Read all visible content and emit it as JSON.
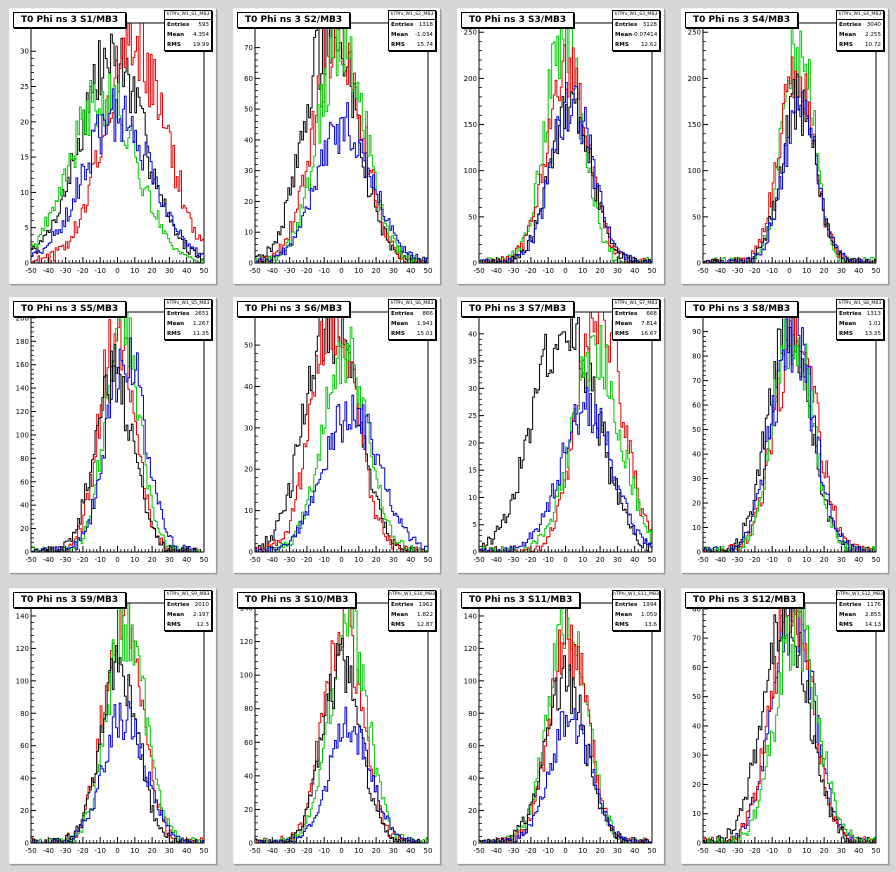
{
  "canvas_background": "#d6d6d6",
  "series_colors": {
    "black": "#000000",
    "red": "#e00000",
    "green": "#00c800",
    "blue": "#0000cc"
  },
  "chart_data": [
    {
      "type": "histogram",
      "title": "T0 Phi ns 3 S1/MB3",
      "stats": {
        "name": "hTPhi_W1_S1_MB3",
        "entries": "593",
        "mean": "4.354",
        "rms": "19.99"
      },
      "x_ticks": [
        "-50",
        "-40",
        "-30",
        "-20",
        "-10",
        "0",
        "10",
        "20",
        "30",
        "40",
        "50"
      ],
      "xlim": [
        -50,
        50
      ],
      "y_ticks": [
        "0",
        "5",
        "10",
        "15",
        "20",
        "25",
        "30"
      ],
      "ylim": [
        0,
        34
      ],
      "series": [
        {
          "color": "black",
          "center": -3,
          "width": 19,
          "peak": 29
        },
        {
          "color": "red",
          "center": 10,
          "width": 18,
          "peak": 31
        },
        {
          "color": "green",
          "center": -8,
          "width": 19,
          "peak": 24
        },
        {
          "color": "blue",
          "center": 0,
          "width": 20,
          "peak": 21
        }
      ]
    },
    {
      "type": "histogram",
      "title": "T0 Phi ns 3 S2/MB3",
      "stats": {
        "name": "hTPhi_W1_S2_MB3",
        "entries": "1318",
        "mean": "-1.034",
        "rms": "15.74"
      },
      "x_ticks": [
        "-50",
        "-40",
        "-30",
        "-20",
        "-10",
        "0",
        "10",
        "20",
        "30",
        "40",
        "50"
      ],
      "xlim": [
        -50,
        50
      ],
      "y_ticks": [
        "0",
        "10",
        "20",
        "30",
        "40",
        "50",
        "60",
        "70"
      ],
      "ylim": [
        0,
        78
      ],
      "series": [
        {
          "color": "black",
          "center": -6,
          "width": 15,
          "peak": 76
        },
        {
          "color": "red",
          "center": -2,
          "width": 14,
          "peak": 74
        },
        {
          "color": "green",
          "center": 0,
          "width": 14,
          "peak": 70
        },
        {
          "color": "blue",
          "center": 2,
          "width": 16,
          "peak": 45
        }
      ]
    },
    {
      "type": "histogram",
      "title": "T0 Phi ns 3 S3/MB3",
      "stats": {
        "name": "hTPhi_W1_S3_MB3",
        "entries": "3128",
        "mean": "-0.07414",
        "rms": "12.62"
      },
      "x_ticks": [
        "-50",
        "-40",
        "-30",
        "-20",
        "-10",
        "0",
        "10",
        "20",
        "30",
        "40",
        "50"
      ],
      "xlim": [
        -50,
        50
      ],
      "y_ticks": [
        "0",
        "50",
        "100",
        "150",
        "200",
        "250"
      ],
      "ylim": [
        0,
        260
      ],
      "series": [
        {
          "color": "green",
          "center": -1,
          "width": 11,
          "peak": 245
        },
        {
          "color": "red",
          "center": 1,
          "width": 12,
          "peak": 210
        },
        {
          "color": "black",
          "center": 3,
          "width": 12,
          "peak": 170
        },
        {
          "color": "blue",
          "center": 4,
          "width": 12,
          "peak": 175
        }
      ]
    },
    {
      "type": "histogram",
      "title": "T0 Phi ns 3 S4/MB3",
      "stats": {
        "name": "hTPhi_W1_S4_MB3",
        "entries": "3040",
        "mean": "2.255",
        "rms": "10.72"
      },
      "x_ticks": [
        "-50",
        "-40",
        "-30",
        "-20",
        "-10",
        "0",
        "10",
        "20",
        "30",
        "40",
        "50"
      ],
      "xlim": [
        -50,
        50
      ],
      "y_ticks": [
        "0",
        "50",
        "100",
        "150",
        "200",
        "250"
      ],
      "ylim": [
        0,
        260
      ],
      "series": [
        {
          "color": "green",
          "center": 5,
          "width": 9,
          "peak": 245
        },
        {
          "color": "red",
          "center": 4,
          "width": 10,
          "peak": 205
        },
        {
          "color": "black",
          "center": 5,
          "width": 10,
          "peak": 175
        },
        {
          "color": "blue",
          "center": 6,
          "width": 10,
          "peak": 165
        }
      ]
    },
    {
      "type": "histogram",
      "title": "T0 Phi ns 3 S5/MB3",
      "stats": {
        "name": "hTPhi_W1_S5_MB3",
        "entries": "2651",
        "mean": "1.267",
        "rms": "11.35"
      },
      "x_ticks": [
        "-50",
        "-40",
        "-30",
        "-20",
        "-10",
        "0",
        "10",
        "20",
        "30",
        "40",
        "50"
      ],
      "xlim": [
        -50,
        50
      ],
      "y_ticks": [
        "0",
        "20",
        "40",
        "60",
        "80",
        "100",
        "120",
        "140",
        "160",
        "180",
        "200"
      ],
      "ylim": [
        0,
        205
      ],
      "series": [
        {
          "color": "red",
          "center": 0,
          "width": 10,
          "peak": 195
        },
        {
          "color": "green",
          "center": 3,
          "width": 10,
          "peak": 185
        },
        {
          "color": "blue",
          "center": 5,
          "width": 11,
          "peak": 170
        },
        {
          "color": "black",
          "center": -2,
          "width": 11,
          "peak": 150
        }
      ]
    },
    {
      "type": "histogram",
      "title": "T0 Phi ns 3 S6/MB3",
      "stats": {
        "name": "hTPhi_W1_S6_MB3",
        "entries": "866",
        "mean": "1.941",
        "rms": "15.01"
      },
      "x_ticks": [
        "-50",
        "-40",
        "-30",
        "-20",
        "-10",
        "0",
        "10",
        "20",
        "30",
        "40",
        "50"
      ],
      "xlim": [
        -50,
        50
      ],
      "y_ticks": [
        "0",
        "10",
        "20",
        "30",
        "40",
        "50"
      ],
      "ylim": [
        0,
        58
      ],
      "series": [
        {
          "color": "black",
          "center": -6,
          "width": 15,
          "peak": 57
        },
        {
          "color": "red",
          "center": -4,
          "width": 13,
          "peak": 57
        },
        {
          "color": "green",
          "center": 2,
          "width": 13,
          "peak": 48
        },
        {
          "color": "blue",
          "center": 6,
          "width": 16,
          "peak": 34
        }
      ]
    },
    {
      "type": "histogram",
      "title": "T0 Phi ns 3 S7/MB3",
      "stats": {
        "name": "hTPhi_W1_S7_MB3",
        "entries": "668",
        "mean": "7.814",
        "rms": "16.67"
      },
      "x_ticks": [
        "-50",
        "-40",
        "-30",
        "-20",
        "-10",
        "0",
        "10",
        "20",
        "30",
        "40",
        "50"
      ],
      "xlim": [
        -50,
        50
      ],
      "y_ticks": [
        "0",
        "5",
        "10",
        "15",
        "20",
        "25",
        "30",
        "35",
        "40"
      ],
      "ylim": [
        0,
        44
      ],
      "series": [
        {
          "color": "black",
          "center": 0,
          "width": 18,
          "peak": 43
        },
        {
          "color": "red",
          "center": 20,
          "width": 13,
          "peak": 43
        },
        {
          "color": "green",
          "center": 18,
          "width": 14,
          "peak": 36
        },
        {
          "color": "blue",
          "center": 12,
          "width": 15,
          "peak": 26
        }
      ]
    },
    {
      "type": "histogram",
      "title": "T0 Phi ns 3 S8/MB3",
      "stats": {
        "name": "hTPhi_W1_S8_MB3",
        "entries": "1313",
        "mean": "1.01",
        "rms": "13.35"
      },
      "x_ticks": [
        "-50",
        "-40",
        "-30",
        "-20",
        "-10",
        "0",
        "10",
        "20",
        "30",
        "40",
        "50"
      ],
      "xlim": [
        -50,
        50
      ],
      "y_ticks": [
        "0",
        "10",
        "20",
        "30",
        "40",
        "50",
        "60",
        "70",
        "80",
        "90"
      ],
      "ylim": [
        0,
        98
      ],
      "series": [
        {
          "color": "black",
          "center": 0,
          "width": 12,
          "peak": 94
        },
        {
          "color": "red",
          "center": 4,
          "width": 12,
          "peak": 92
        },
        {
          "color": "green",
          "center": 2,
          "width": 11,
          "peak": 93
        },
        {
          "color": "blue",
          "center": 2,
          "width": 12,
          "peak": 88
        }
      ]
    },
    {
      "type": "histogram",
      "title": "T0 Phi ns 3 S9/MB3",
      "stats": {
        "name": "hTPhi_W1_S9_MB3",
        "entries": "2010",
        "mean": "2.197",
        "rms": "12.3"
      },
      "x_ticks": [
        "-50",
        "-40",
        "-30",
        "-20",
        "-10",
        "0",
        "10",
        "20",
        "30",
        "40",
        "50"
      ],
      "xlim": [
        -50,
        50
      ],
      "y_ticks": [
        "0",
        "20",
        "40",
        "60",
        "80",
        "100",
        "120",
        "140"
      ],
      "ylim": [
        0,
        148
      ],
      "series": [
        {
          "color": "red",
          "center": 3,
          "width": 11,
          "peak": 138
        },
        {
          "color": "green",
          "center": 5,
          "width": 11,
          "peak": 135
        },
        {
          "color": "black",
          "center": 1,
          "width": 11,
          "peak": 103
        },
        {
          "color": "blue",
          "center": 4,
          "width": 12,
          "peak": 80
        }
      ]
    },
    {
      "type": "histogram",
      "title": "T0 Phi ns 3 S10/MB3",
      "stats": {
        "name": "hTPhi_W1_S10_MB3",
        "entries": "1962",
        "mean": "1.822",
        "rms": "12.87"
      },
      "x_ticks": [
        "-50",
        "-40",
        "-30",
        "-20",
        "-10",
        "0",
        "10",
        "20",
        "30",
        "40",
        "50"
      ],
      "xlim": [
        -50,
        50
      ],
      "y_ticks": [
        "0",
        "20",
        "40",
        "60",
        "80",
        "100",
        "120",
        "140"
      ],
      "ylim": [
        0,
        143
      ],
      "series": [
        {
          "color": "red",
          "center": 1,
          "width": 11,
          "peak": 135
        },
        {
          "color": "green",
          "center": 4,
          "width": 11,
          "peak": 130
        },
        {
          "color": "black",
          "center": 0,
          "width": 11,
          "peak": 103
        },
        {
          "color": "blue",
          "center": 5,
          "width": 12,
          "peak": 70
        }
      ]
    },
    {
      "type": "histogram",
      "title": "T0 Phi ns 3 S11/MB3",
      "stats": {
        "name": "hTPhi_W1_S11_MB3",
        "entries": "1994",
        "mean": "1.059",
        "rms": "13.6"
      },
      "x_ticks": [
        "-50",
        "-40",
        "-30",
        "-20",
        "-10",
        "0",
        "10",
        "20",
        "30",
        "40",
        "50"
      ],
      "xlim": [
        -50,
        50
      ],
      "y_ticks": [
        "0",
        "20",
        "40",
        "60",
        "80",
        "100",
        "120",
        "140"
      ],
      "ylim": [
        0,
        148
      ],
      "series": [
        {
          "color": "green",
          "center": 1,
          "width": 11,
          "peak": 140
        },
        {
          "color": "red",
          "center": 2,
          "width": 11,
          "peak": 128
        },
        {
          "color": "black",
          "center": 0,
          "width": 12,
          "peak": 100
        },
        {
          "color": "blue",
          "center": 3,
          "width": 12,
          "peak": 75
        }
      ]
    },
    {
      "type": "histogram",
      "title": "T0 Phi ns 3 S12/MB3",
      "stats": {
        "name": "hTPhi_W1_S12_MB3",
        "entries": "1176",
        "mean": "2.855",
        "rms": "14.13"
      },
      "x_ticks": [
        "-50",
        "-40",
        "-30",
        "-20",
        "-10",
        "0",
        "10",
        "20",
        "30",
        "40",
        "50"
      ],
      "xlim": [
        -50,
        50
      ],
      "y_ticks": [
        "0",
        "10",
        "20",
        "30",
        "40",
        "50",
        "60",
        "70",
        "80"
      ],
      "ylim": [
        0,
        82
      ],
      "series": [
        {
          "color": "blue",
          "center": 2,
          "width": 12,
          "peak": 80
        },
        {
          "color": "red",
          "center": 1,
          "width": 12,
          "peak": 79
        },
        {
          "color": "black",
          "center": -2,
          "width": 13,
          "peak": 78
        },
        {
          "color": "green",
          "center": 4,
          "width": 12,
          "peak": 75
        }
      ]
    }
  ]
}
